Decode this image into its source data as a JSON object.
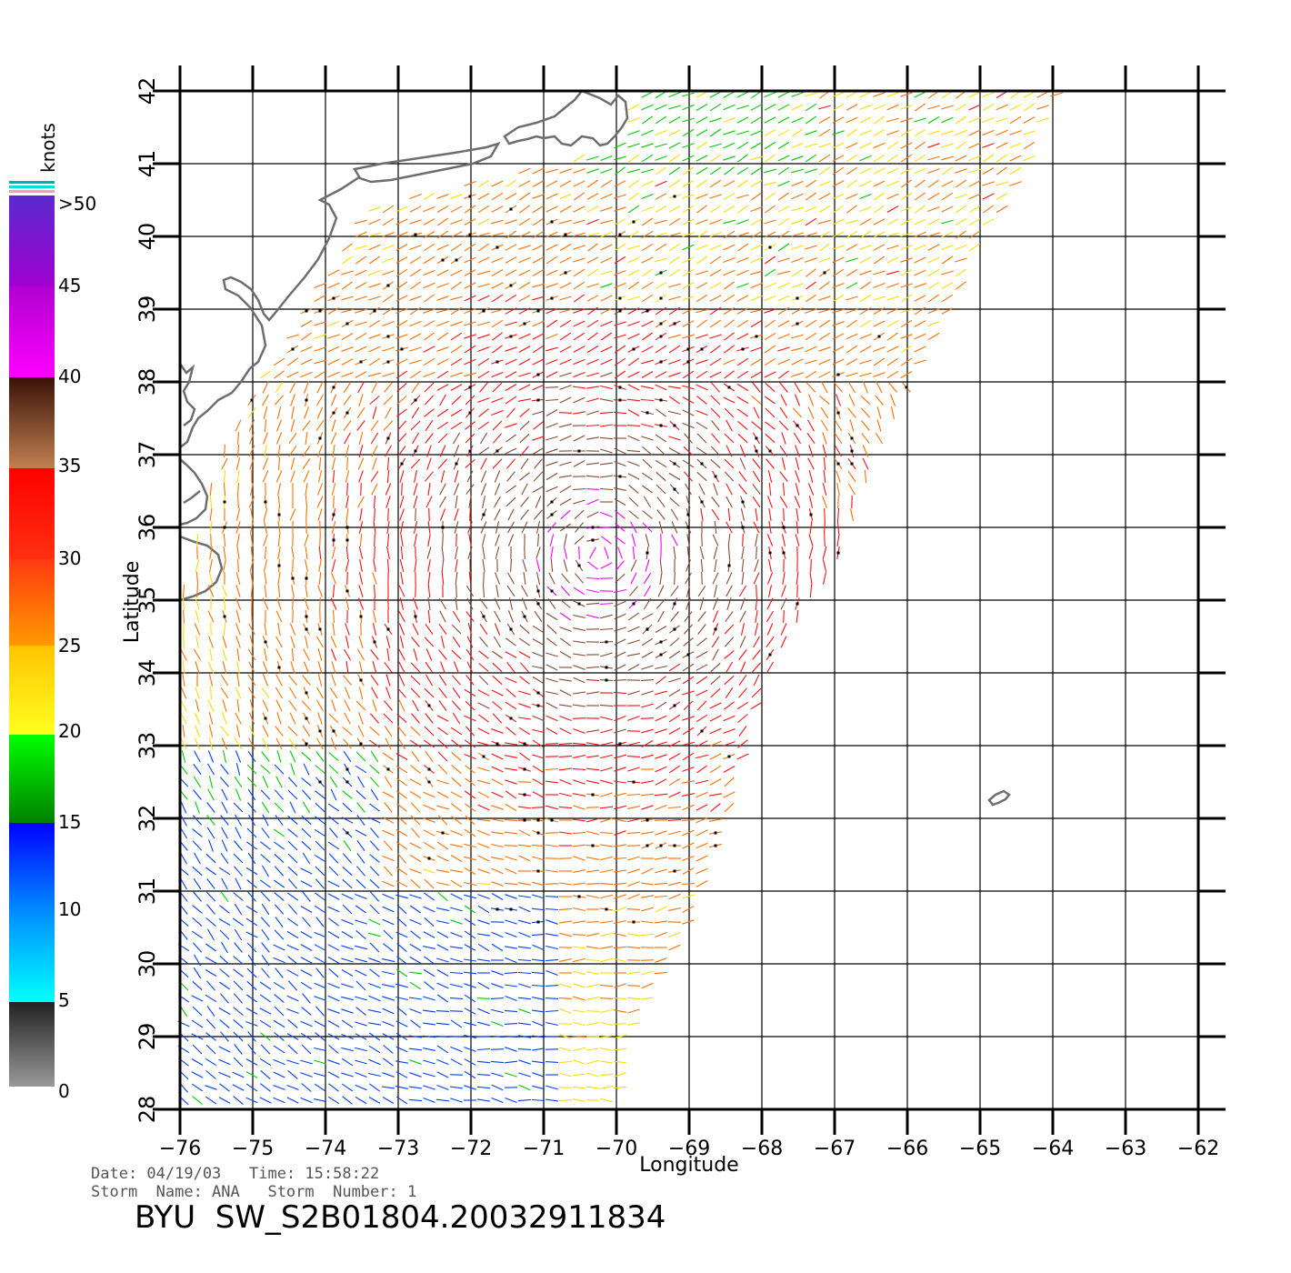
{
  "map": {
    "lon_range": [
      -76,
      -62
    ],
    "lat_range": [
      28,
      42
    ],
    "lon_ticks": [
      "−76",
      "−75",
      "−74",
      "−73",
      "−72",
      "−71",
      "−70",
      "−69",
      "−68",
      "−67",
      "−66",
      "−65",
      "−64",
      "−63",
      "−62"
    ],
    "lat_ticks": [
      "28",
      "29",
      "30",
      "31",
      "32",
      "33",
      "34",
      "35",
      "36",
      "37",
      "38",
      "39",
      "40",
      "41",
      "42"
    ],
    "xlabel": "Longitude",
    "ylabel": "Latitude",
    "coast_color": "#6e6e6e",
    "grid_color": "#000000"
  },
  "colorbar": {
    "unit": "knots",
    "labels": [
      ">50",
      "45",
      "40",
      "35",
      "30",
      "25",
      "20",
      "15",
      "10",
      "5",
      "0"
    ],
    "colors": {
      "0-5": "#777777",
      "5-10": "#00e0ff",
      "10-15": "#0040ff",
      "15-20": "#00cc00",
      "20-25": "#ffdd00",
      "25-30": "#ff7000",
      "30-35": "#ff1010",
      "35-40": "#8a4a30",
      "40-45": "#ff00ff",
      "45-50": "#7a1fd0"
    }
  },
  "footer": {
    "date_line": "Date: 04/19/03   Time: 15:58:22",
    "storm_line": "Storm  Name: ANA   Storm  Number: 1",
    "title": "BYU  SW_S2B01804.20032911834"
  }
}
